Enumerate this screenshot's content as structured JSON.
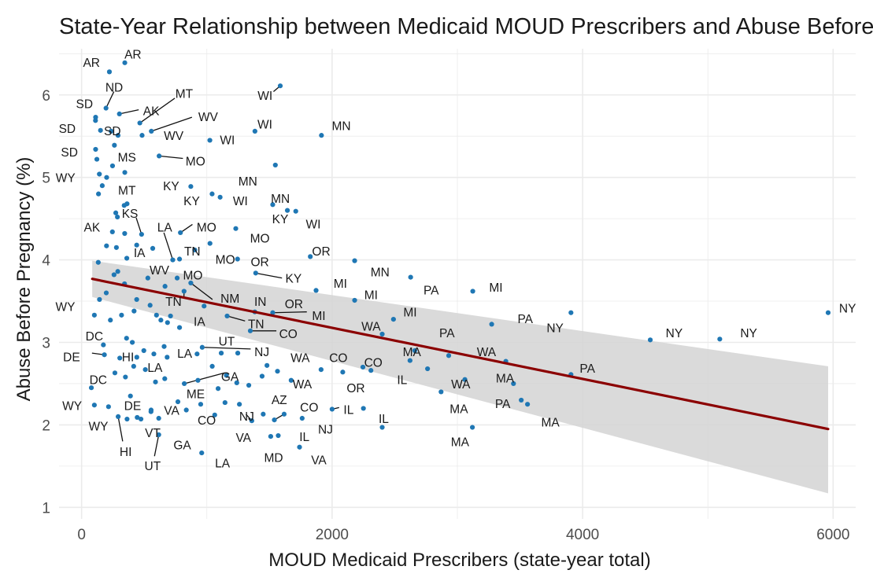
{
  "chart_data": {
    "type": "scatter",
    "title": "State-Year Relationship between Medicaid MOUD Prescribers and Abuse Before Pregnancy",
    "xlabel": "MOUD Medicaid Prescribers (state-year total)",
    "ylabel": "Abuse Before Pregnancy (%)",
    "xlim": [
      -180,
      6180
    ],
    "ylim": [
      0.86,
      6.56
    ],
    "x_ticks": [
      0,
      2000,
      4000,
      6000
    ],
    "y_ticks": [
      1,
      2,
      3,
      4,
      5,
      6
    ],
    "grid": true,
    "colors": {
      "points": "#1f77b4",
      "trend": "#8b0000",
      "band": "#d3d3d3",
      "grid": "#ebebeb"
    },
    "trend": {
      "x": [
        85,
        5960
      ],
      "y": [
        3.77,
        1.95
      ],
      "ci_upper": [
        3.99,
        2.71
      ],
      "ci_lower": [
        3.55,
        1.17
      ]
    },
    "points": [
      [
        222,
        6.28
      ],
      [
        345,
        6.39
      ],
      [
        195,
        5.84
      ],
      [
        302,
        5.77
      ],
      [
        465,
        5.66
      ],
      [
        1586,
        6.11
      ],
      [
        111,
        5.69
      ],
      [
        112,
        5.73
      ],
      [
        151,
        5.57
      ],
      [
        236,
        5.56
      ],
      [
        291,
        5.51
      ],
      [
        483,
        5.51
      ],
      [
        557,
        5.56
      ],
      [
        1915,
        5.51
      ],
      [
        1384,
        5.56
      ],
      [
        1024,
        5.45
      ],
      [
        112,
        5.34
      ],
      [
        122,
        5.22
      ],
      [
        262,
        5.39
      ],
      [
        619,
        5.26
      ],
      [
        1547,
        5.15
      ],
      [
        142,
        5.04
      ],
      [
        200,
        5.0
      ],
      [
        247,
        5.14
      ],
      [
        345,
        5.06
      ],
      [
        165,
        4.9
      ],
      [
        135,
        4.8
      ],
      [
        286,
        4.52
      ],
      [
        273,
        4.57
      ],
      [
        340,
        4.66
      ],
      [
        363,
        4.68
      ],
      [
        246,
        4.34
      ],
      [
        479,
        4.31
      ],
      [
        789,
        4.33
      ],
      [
        1042,
        4.8
      ],
      [
        1106,
        4.76
      ],
      [
        1231,
        4.38
      ],
      [
        1526,
        4.67
      ],
      [
        1643,
        4.6
      ],
      [
        1710,
        4.59
      ],
      [
        872,
        4.89
      ],
      [
        199,
        4.17
      ],
      [
        278,
        4.15
      ],
      [
        344,
        4.32
      ],
      [
        361,
        4.02
      ],
      [
        440,
        4.18
      ],
      [
        568,
        4.14
      ],
      [
        728,
        4.0
      ],
      [
        782,
        4.01
      ],
      [
        904,
        4.12
      ],
      [
        1025,
        4.2
      ],
      [
        1245,
        4.01
      ],
      [
        1390,
        3.84
      ],
      [
        1826,
        4.04
      ],
      [
        2180,
        3.99
      ],
      [
        2627,
        3.79
      ],
      [
        3123,
        3.62
      ],
      [
        133,
        3.97
      ],
      [
        197,
        3.6
      ],
      [
        259,
        3.82
      ],
      [
        289,
        3.86
      ],
      [
        343,
        3.71
      ],
      [
        440,
        3.52
      ],
      [
        529,
        3.78
      ],
      [
        666,
        3.68
      ],
      [
        763,
        3.78
      ],
      [
        818,
        3.62
      ],
      [
        872,
        3.72
      ],
      [
        102,
        3.33
      ],
      [
        143,
        3.52
      ],
      [
        230,
        3.27
      ],
      [
        319,
        3.33
      ],
      [
        419,
        3.38
      ],
      [
        547,
        3.45
      ],
      [
        598,
        3.33
      ],
      [
        633,
        3.27
      ],
      [
        686,
        3.24
      ],
      [
        710,
        3.32
      ],
      [
        782,
        3.18
      ],
      [
        978,
        3.44
      ],
      [
        1162,
        3.32
      ],
      [
        1383,
        3.37
      ],
      [
        1526,
        3.36
      ],
      [
        1872,
        3.63
      ],
      [
        2180,
        3.51
      ],
      [
        2490,
        3.28
      ],
      [
        2400,
        3.1
      ],
      [
        3907,
        3.36
      ],
      [
        3274,
        3.22
      ],
      [
        5960,
        3.36
      ],
      [
        5095,
        3.04
      ],
      [
        4540,
        3.03
      ],
      [
        174,
        2.97
      ],
      [
        182,
        2.85
      ],
      [
        305,
        2.81
      ],
      [
        359,
        3.05
      ],
      [
        405,
        3.0
      ],
      [
        441,
        2.82
      ],
      [
        497,
        2.9
      ],
      [
        577,
        2.86
      ],
      [
        659,
        2.95
      ],
      [
        683,
        2.82
      ],
      [
        922,
        2.86
      ],
      [
        963,
        2.94
      ],
      [
        1043,
        2.71
      ],
      [
        1115,
        2.87
      ],
      [
        1247,
        2.87
      ],
      [
        1347,
        3.14
      ],
      [
        2310,
        2.66
      ],
      [
        2660,
        2.9
      ],
      [
        2931,
        2.84
      ],
      [
        3387,
        2.77
      ],
      [
        3907,
        2.61
      ],
      [
        78,
        2.45
      ],
      [
        266,
        2.63
      ],
      [
        350,
        2.58
      ],
      [
        416,
        2.71
      ],
      [
        509,
        2.67
      ],
      [
        590,
        2.52
      ],
      [
        664,
        2.56
      ],
      [
        820,
        2.5
      ],
      [
        929,
        2.54
      ],
      [
        1090,
        2.44
      ],
      [
        1156,
        2.6
      ],
      [
        1239,
        2.51
      ],
      [
        1335,
        2.48
      ],
      [
        1441,
        2.59
      ],
      [
        1480,
        2.72
      ],
      [
        1564,
        2.65
      ],
      [
        1673,
        2.54
      ],
      [
        1912,
        2.67
      ],
      [
        2085,
        2.64
      ],
      [
        2246,
        2.7
      ],
      [
        2622,
        2.78
      ],
      [
        2762,
        2.68
      ],
      [
        3060,
        2.55
      ],
      [
        3448,
        2.5
      ],
      [
        2870,
        2.4
      ],
      [
        3510,
        2.3
      ],
      [
        3560,
        2.25
      ],
      [
        102,
        2.24
      ],
      [
        215,
        2.22
      ],
      [
        390,
        2.35
      ],
      [
        474,
        2.07
      ],
      [
        555,
        2.18
      ],
      [
        616,
        2.08
      ],
      [
        769,
        2.28
      ],
      [
        836,
        2.18
      ],
      [
        951,
        2.25
      ],
      [
        1063,
        2.12
      ],
      [
        1145,
        2.27
      ],
      [
        1260,
        2.25
      ],
      [
        1359,
        2.05
      ],
      [
        1450,
        2.13
      ],
      [
        1539,
        2.06
      ],
      [
        1617,
        2.13
      ],
      [
        1761,
        2.08
      ],
      [
        2000,
        2.19
      ],
      [
        2250,
        2.2
      ],
      [
        2400,
        1.97
      ],
      [
        3120,
        1.97
      ],
      [
        1570,
        1.87
      ],
      [
        1740,
        1.73
      ],
      [
        292,
        2.1
      ],
      [
        363,
        2.07
      ],
      [
        444,
        2.09
      ],
      [
        554,
        2.16
      ],
      [
        616,
        1.88
      ],
      [
        959,
        1.66
      ],
      [
        1510,
        1.86
      ]
    ],
    "labels": [
      {
        "text": "AR",
        "x": 79,
        "y": 6.39
      },
      {
        "text": "AR",
        "x": 410,
        "y": 6.49
      },
      {
        "text": "ND",
        "x": 260,
        "y": 6.09
      },
      {
        "text": "MT",
        "x": 819,
        "y": 6.01
      },
      {
        "text": "WI",
        "x": 1465,
        "y": 5.99
      },
      {
        "text": "SD",
        "x": 23,
        "y": 5.89
      },
      {
        "text": "AK",
        "x": 556,
        "y": 5.8
      },
      {
        "text": "WV",
        "x": 1010,
        "y": 5.73
      },
      {
        "text": "SD",
        "x": -115,
        "y": 5.59
      },
      {
        "text": "SD",
        "x": 246,
        "y": 5.56
      },
      {
        "text": "WI",
        "x": 1463,
        "y": 5.64
      },
      {
        "text": "MN",
        "x": 2073,
        "y": 5.62
      },
      {
        "text": "WV",
        "x": 735,
        "y": 5.5
      },
      {
        "text": "WI",
        "x": 1164,
        "y": 5.45
      },
      {
        "text": "SD",
        "x": -97,
        "y": 5.3
      },
      {
        "text": "MS",
        "x": 362,
        "y": 5.24
      },
      {
        "text": "MO",
        "x": 909,
        "y": 5.19
      },
      {
        "text": "WY",
        "x": -128,
        "y": 4.99
      },
      {
        "text": "MN",
        "x": 1327,
        "y": 4.95
      },
      {
        "text": "MT",
        "x": 362,
        "y": 4.84
      },
      {
        "text": "KY",
        "x": 715,
        "y": 4.89
      },
      {
        "text": "MN",
        "x": 1587,
        "y": 4.74
      },
      {
        "text": "KY",
        "x": 879,
        "y": 4.71
      },
      {
        "text": "WI",
        "x": 1268,
        "y": 4.71
      },
      {
        "text": "KS",
        "x": 386,
        "y": 4.56
      },
      {
        "text": "KY",
        "x": 1586,
        "y": 4.49
      },
      {
        "text": "WI",
        "x": 1850,
        "y": 4.43
      },
      {
        "text": "AK",
        "x": 83,
        "y": 4.39
      },
      {
        "text": "LA",
        "x": 664,
        "y": 4.39
      },
      {
        "text": "MO",
        "x": 997,
        "y": 4.39
      },
      {
        "text": "MO",
        "x": 1423,
        "y": 4.26
      },
      {
        "text": "TN",
        "x": 884,
        "y": 4.1
      },
      {
        "text": "IA",
        "x": 462,
        "y": 4.08
      },
      {
        "text": "OR",
        "x": 1913,
        "y": 4.1
      },
      {
        "text": "MO",
        "x": 1147,
        "y": 4.0
      },
      {
        "text": "OR",
        "x": 1423,
        "y": 3.97
      },
      {
        "text": "WV",
        "x": 621,
        "y": 3.87
      },
      {
        "text": "MO",
        "x": 888,
        "y": 3.81
      },
      {
        "text": "MN",
        "x": 2383,
        "y": 3.85
      },
      {
        "text": "KY",
        "x": 1692,
        "y": 3.77
      },
      {
        "text": "MI",
        "x": 2066,
        "y": 3.71
      },
      {
        "text": "MI",
        "x": 3308,
        "y": 3.66
      },
      {
        "text": "PA",
        "x": 2791,
        "y": 3.63
      },
      {
        "text": "MI",
        "x": 2311,
        "y": 3.57
      },
      {
        "text": "WY",
        "x": -130,
        "y": 3.43
      },
      {
        "text": "TN",
        "x": 734,
        "y": 3.49
      },
      {
        "text": "NM",
        "x": 1185,
        "y": 3.53
      },
      {
        "text": "IN",
        "x": 1427,
        "y": 3.49
      },
      {
        "text": "OR",
        "x": 1695,
        "y": 3.46
      },
      {
        "text": "MI",
        "x": 2623,
        "y": 3.36
      },
      {
        "text": "MI",
        "x": 1894,
        "y": 3.32
      },
      {
        "text": "PA",
        "x": 3542,
        "y": 3.28
      },
      {
        "text": "IA",
        "x": 941,
        "y": 3.25
      },
      {
        "text": "TN",
        "x": 1393,
        "y": 3.22
      },
      {
        "text": "WA",
        "x": 2311,
        "y": 3.19
      },
      {
        "text": "NY",
        "x": 3780,
        "y": 3.17
      },
      {
        "text": "NY",
        "x": 6115,
        "y": 3.41
      },
      {
        "text": "NY",
        "x": 5326,
        "y": 3.11
      },
      {
        "text": "NY",
        "x": 4731,
        "y": 3.11
      },
      {
        "text": "DC",
        "x": 102,
        "y": 3.07
      },
      {
        "text": "CO",
        "x": 1650,
        "y": 3.1
      },
      {
        "text": "PA",
        "x": 2917,
        "y": 3.11
      },
      {
        "text": "UT",
        "x": 1158,
        "y": 3.01
      },
      {
        "text": "NJ",
        "x": 1439,
        "y": 2.88
      },
      {
        "text": "MA",
        "x": 2637,
        "y": 2.88
      },
      {
        "text": "WA",
        "x": 3232,
        "y": 2.88
      },
      {
        "text": "PA",
        "x": 4038,
        "y": 2.68
      },
      {
        "text": "DE",
        "x": -80,
        "y": 2.82
      },
      {
        "text": "HI",
        "x": 370,
        "y": 2.82
      },
      {
        "text": "LA",
        "x": 823,
        "y": 2.86
      },
      {
        "text": "WA",
        "x": 1745,
        "y": 2.81
      },
      {
        "text": "CO",
        "x": 2050,
        "y": 2.81
      },
      {
        "text": "CO",
        "x": 2329,
        "y": 2.75
      },
      {
        "text": "LA",
        "x": 586,
        "y": 2.69
      },
      {
        "text": "GA",
        "x": 1184,
        "y": 2.58
      },
      {
        "text": "IL",
        "x": 2559,
        "y": 2.54
      },
      {
        "text": "MA",
        "x": 3380,
        "y": 2.56
      },
      {
        "text": "DC",
        "x": 133,
        "y": 2.54
      },
      {
        "text": "WA",
        "x": 1762,
        "y": 2.49
      },
      {
        "text": "WA",
        "x": 3027,
        "y": 2.49
      },
      {
        "text": "OR",
        "x": 2189,
        "y": 2.44
      },
      {
        "text": "ME",
        "x": 910,
        "y": 2.37
      },
      {
        "text": "AZ",
        "x": 1578,
        "y": 2.3
      },
      {
        "text": "PA",
        "x": 3362,
        "y": 2.25
      },
      {
        "text": "MA",
        "x": 3012,
        "y": 2.19
      },
      {
        "text": "WY",
        "x": -76,
        "y": 2.23
      },
      {
        "text": "DE",
        "x": 407,
        "y": 2.23
      },
      {
        "text": "CO",
        "x": 1817,
        "y": 2.21
      },
      {
        "text": "IL",
        "x": 2132,
        "y": 2.18
      },
      {
        "text": "VA",
        "x": 719,
        "y": 2.17
      },
      {
        "text": "MA",
        "x": 3742,
        "y": 2.03
      },
      {
        "text": "NJ",
        "x": 1318,
        "y": 2.1
      },
      {
        "text": "IL",
        "x": 2412,
        "y": 2.07
      },
      {
        "text": "CO",
        "x": 999,
        "y": 2.05
      },
      {
        "text": "WY",
        "x": 134,
        "y": 1.98
      },
      {
        "text": "NJ",
        "x": 1947,
        "y": 1.94
      },
      {
        "text": "VT",
        "x": 568,
        "y": 1.9
      },
      {
        "text": "VA",
        "x": 1292,
        "y": 1.84
      },
      {
        "text": "IL",
        "x": 1779,
        "y": 1.85
      },
      {
        "text": "MA",
        "x": 3021,
        "y": 1.79
      },
      {
        "text": "GA",
        "x": 804,
        "y": 1.75
      },
      {
        "text": "HI",
        "x": 352,
        "y": 1.67
      },
      {
        "text": "MD",
        "x": 1533,
        "y": 1.6
      },
      {
        "text": "VA",
        "x": 1894,
        "y": 1.57
      },
      {
        "text": "UT",
        "x": 567,
        "y": 1.5
      },
      {
        "text": "LA",
        "x": 1125,
        "y": 1.53
      }
    ],
    "leaders": [
      [
        [
          195,
          5.84
        ],
        [
          258,
          6.04
        ]
      ],
      [
        [
          302,
          5.77
        ],
        [
          456,
          5.82
        ]
      ],
      [
        [
          465,
          5.66
        ],
        [
          744,
          5.96
        ]
      ],
      [
        [
          557,
          5.56
        ],
        [
          881,
          5.73
        ]
      ],
      [
        [
          1586,
          6.11
        ],
        [
          1532,
          6.04
        ]
      ],
      [
        [
          619,
          5.26
        ],
        [
          809,
          5.23
        ]
      ],
      [
        [
          479,
          4.31
        ],
        [
          436,
          4.51
        ]
      ],
      [
        [
          789,
          4.33
        ],
        [
          885,
          4.43
        ]
      ],
      [
        [
          728,
          4.0
        ],
        [
          657,
          4.33
        ]
      ],
      [
        [
          1390,
          3.84
        ],
        [
          1600,
          3.78
        ]
      ],
      [
        [
          818,
          3.62
        ],
        [
          817,
          3.54
        ]
      ],
      [
        [
          872,
          3.72
        ],
        [
          1045,
          3.52
        ]
      ],
      [
        [
          1526,
          3.36
        ],
        [
          1798,
          3.37
        ]
      ],
      [
        [
          1162,
          3.32
        ],
        [
          1305,
          3.26
        ]
      ],
      [
        [
          182,
          2.85
        ],
        [
          83,
          2.87
        ]
      ],
      [
        [
          963,
          2.94
        ],
        [
          1350,
          2.92
        ]
      ],
      [
        [
          1347,
          3.14
        ],
        [
          1555,
          3.14
        ]
      ],
      [
        [
          820,
          2.5
        ],
        [
          1142,
          2.63
        ]
      ],
      [
        [
          1359,
          2.05
        ],
        [
          1312,
          2.13
        ]
      ],
      [
        [
          1617,
          2.13
        ],
        [
          1539,
          2.06
        ]
      ],
      [
        [
          2000,
          2.19
        ],
        [
          2056,
          2.21
        ]
      ],
      [
        [
          292,
          2.1
        ],
        [
          328,
          1.8
        ]
      ],
      [
        [
          616,
          1.88
        ],
        [
          582,
          1.62
        ]
      ]
    ]
  }
}
